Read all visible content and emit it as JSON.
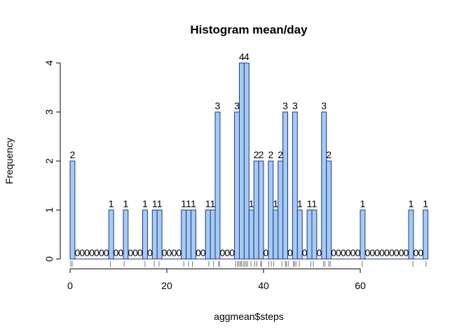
{
  "chart_data": {
    "type": "bar",
    "title": "Histogram mean/day",
    "xlabel": "aggmean$steps",
    "ylabel": "Frequency",
    "xlim": [
      0,
      73.6
    ],
    "ylim": [
      0,
      4
    ],
    "bin_width": 1,
    "bin_starts": [
      0,
      1,
      2,
      3,
      4,
      5,
      6,
      7,
      8,
      9,
      10,
      11,
      12,
      13,
      14,
      15,
      16,
      17,
      18,
      19,
      20,
      21,
      22,
      23,
      24,
      25,
      26,
      27,
      28,
      29,
      30,
      31,
      32,
      33,
      34,
      35,
      36,
      37,
      38,
      39,
      40,
      41,
      42,
      43,
      44,
      45,
      46,
      47,
      48,
      49,
      50,
      51,
      52,
      53,
      54,
      55,
      56,
      57,
      58,
      59,
      60,
      61,
      62,
      63,
      64,
      65,
      66,
      67,
      68,
      69,
      70,
      71,
      72,
      73
    ],
    "values": [
      2,
      0,
      0,
      0,
      0,
      0,
      0,
      0,
      1,
      0,
      0,
      1,
      0,
      0,
      0,
      1,
      0,
      1,
      1,
      0,
      0,
      0,
      0,
      1,
      1,
      1,
      0,
      0,
      1,
      1,
      3,
      0,
      0,
      0,
      3,
      4,
      4,
      1,
      2,
      2,
      0,
      2,
      1,
      2,
      3,
      0,
      3,
      1,
      0,
      1,
      1,
      0,
      3,
      2,
      0,
      0,
      0,
      0,
      0,
      0,
      1,
      0,
      0,
      0,
      0,
      0,
      0,
      0,
      0,
      0,
      1,
      0,
      0,
      1
    ],
    "x_ticks": [
      0,
      20,
      40,
      60
    ],
    "y_ticks": [
      0,
      1,
      2,
      3,
      4
    ],
    "rug": [
      0.14,
      0.44,
      8.35,
      11.18,
      15.5,
      17.42,
      18.39,
      23.5,
      24.51,
      25.3,
      28.7,
      29.66,
      30.7,
      30.9,
      34.2,
      34.6,
      34.9,
      35.2,
      35.4,
      35.8,
      36.1,
      36.4,
      36.7,
      37.4,
      38.2,
      38.6,
      39.4,
      39.6,
      41.1,
      41.6,
      42.1,
      43.8,
      44.5,
      44.7,
      45.1,
      46.2,
      46.4,
      46.7,
      47.4,
      49.8,
      50.3,
      52.4,
      52.7,
      53.5,
      53.8,
      60.4,
      70.9,
      73.6
    ],
    "bar_fill": "#a5cdea",
    "bar_border": "#1d2fb5"
  }
}
